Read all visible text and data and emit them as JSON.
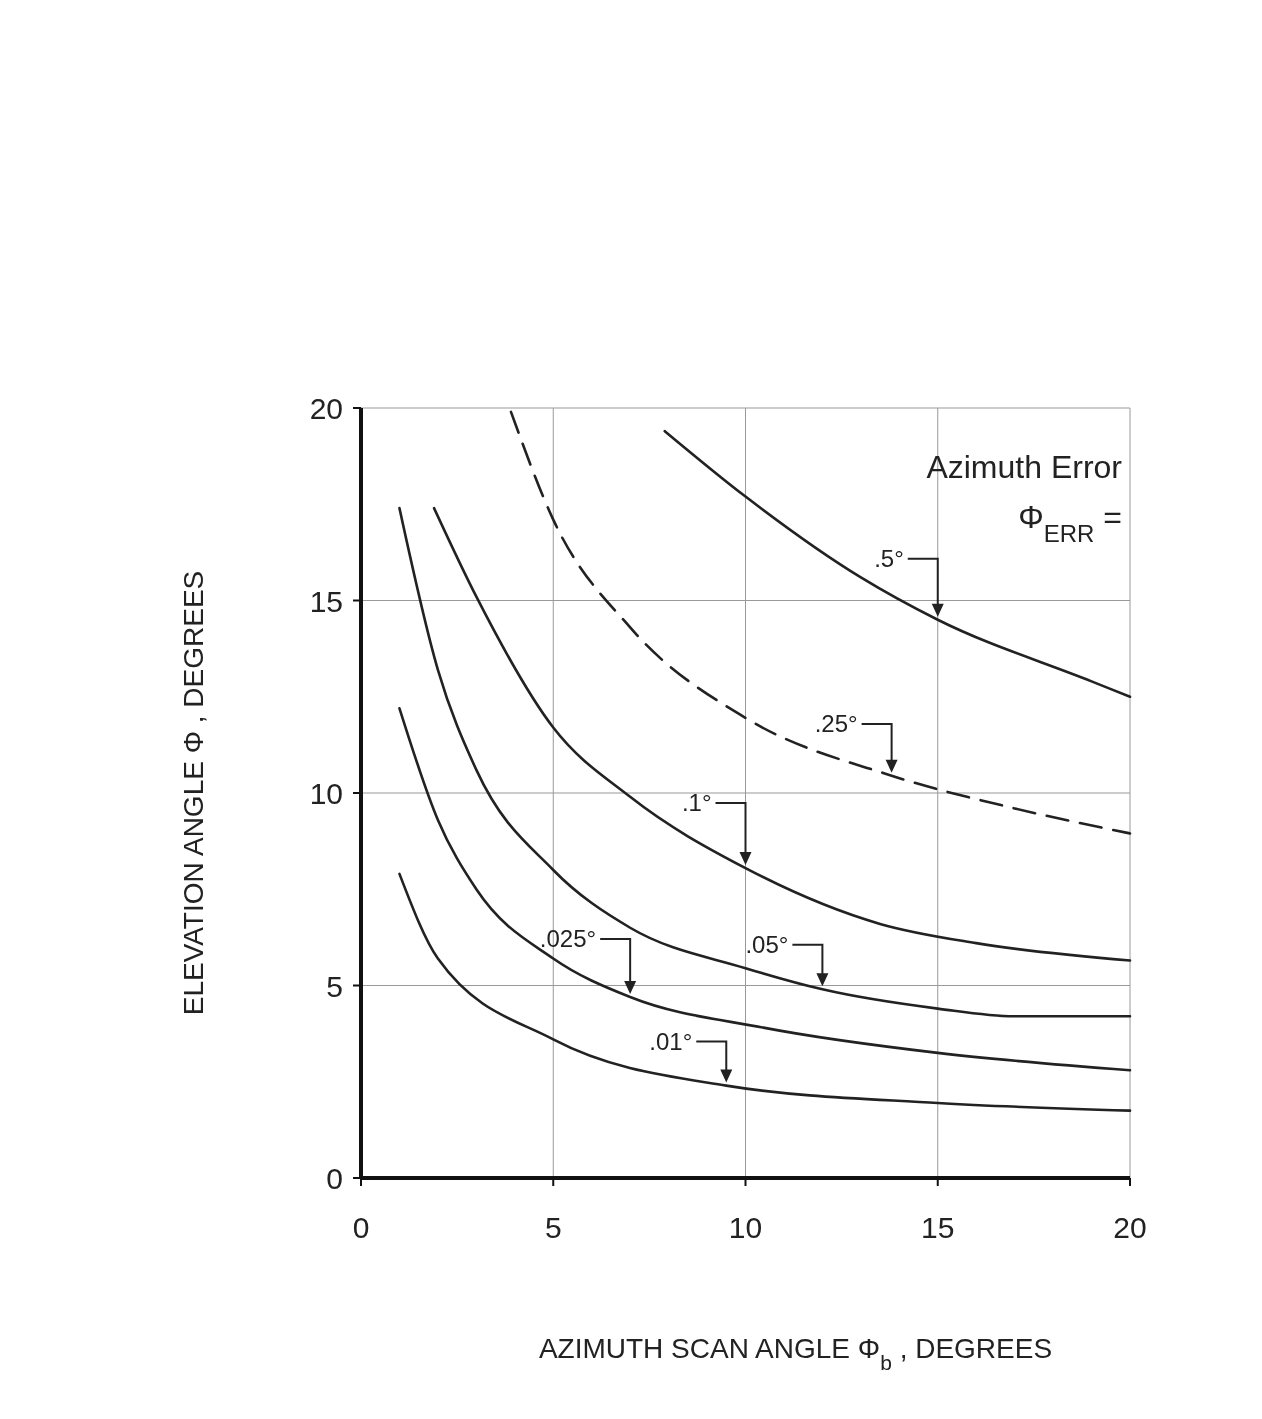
{
  "chart_data": {
    "type": "line",
    "xlabel": "AZIMUTH SCAN ANGLE Φ$_{b}$, DEGREES",
    "ylabel": "ELEVATION ANGLE Φ , DEGREES",
    "annotations": [
      "Azimuth Error",
      "Φ$_{ERR}$ ="
    ],
    "xlim": [
      0,
      20
    ],
    "ylim": [
      0,
      20
    ],
    "xticks": [
      0,
      5,
      10,
      15,
      20
    ],
    "yticks": [
      0,
      5,
      10,
      15,
      20
    ],
    "grid": true,
    "marker": "none",
    "series": [
      {
        "name": ".5°",
        "color": "#222222",
        "line_style": "solid",
        "x": [
          7.9,
          10,
          13,
          15,
          19,
          20
        ],
        "values": [
          19.4,
          17.7,
          15.6,
          14.5,
          12.9,
          12.5
        ]
      },
      {
        "name": ".25°",
        "color": "#222222",
        "line_style": "dashed",
        "x": [
          3.9,
          5,
          7,
          10,
          13.8,
          17,
          20
        ],
        "values": [
          19.9,
          17.1,
          14.3,
          11.95,
          10.45,
          9.6,
          8.95
        ]
      },
      {
        "name": ".1°",
        "color": "#222222",
        "line_style": "solid",
        "x": [
          1.9,
          3,
          5,
          7,
          10,
          13.5,
          16,
          20
        ],
        "values": [
          17.4,
          15.1,
          11.7,
          9.9,
          8.05,
          6.6,
          6.1,
          5.65
        ]
      },
      {
        "name": ".05°",
        "color": "#222222",
        "line_style": "solid",
        "x": [
          1,
          2,
          3,
          5,
          7,
          10,
          12,
          15,
          17,
          20
        ],
        "values": [
          17.4,
          13.2,
          10.6,
          8.0,
          6.5,
          5.45,
          4.9,
          4.4,
          4.2,
          4.2
        ]
      },
      {
        "name": ".025°",
        "color": "#222222",
        "line_style": "solid",
        "x": [
          1,
          2,
          3,
          5,
          7,
          10.5,
          15,
          20
        ],
        "values": [
          12.2,
          9.3,
          7.5,
          5.7,
          4.7,
          3.9,
          3.25,
          2.8
        ]
      },
      {
        "name": ".01°",
        "color": "#222222",
        "line_style": "solid",
        "x": [
          1,
          2,
          5,
          9.5,
          15,
          20
        ],
        "values": [
          7.9,
          5.7,
          3.6,
          2.4,
          1.95,
          1.75
        ]
      }
    ]
  }
}
